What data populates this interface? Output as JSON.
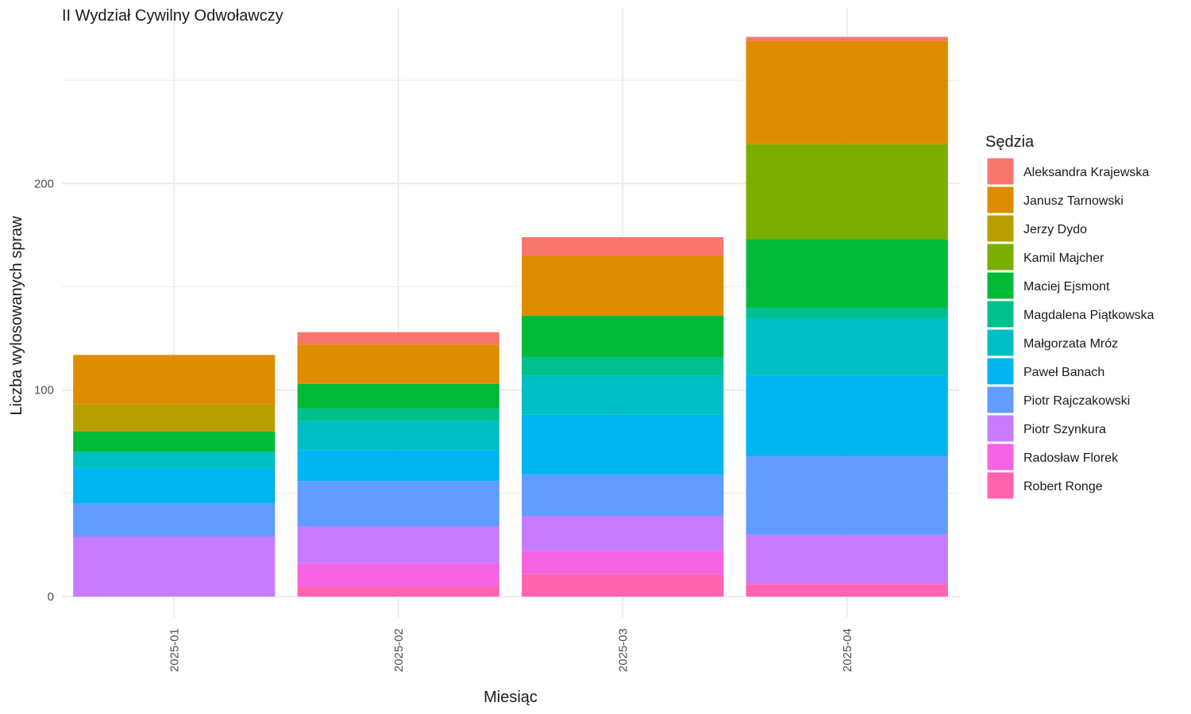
{
  "chart_data": {
    "type": "bar",
    "stacked": true,
    "title": "II Wydział Cywilny Odwoławczy",
    "xlabel": "Miesiąc",
    "ylabel": "Liczba wylosowanych spraw",
    "legend_title": "Sędzia",
    "legend_position": "right",
    "grid": true,
    "ylim": [
      -10,
      285
    ],
    "y_ticks": [
      0,
      100,
      200
    ],
    "categories": [
      "2025-01",
      "2025-02",
      "2025-03",
      "2025-04"
    ],
    "stack_order_bottom_to_top": [
      "Robert Ronge",
      "Radosław Florek",
      "Piotr Szynkura",
      "Piotr Rajczakowski",
      "Paweł Banach",
      "Małgorzata Mróz",
      "Magdalena Piątkowska",
      "Maciej Ejsmont",
      "Kamil Majcher",
      "Jerzy Dydo",
      "Janusz Tarnowski",
      "Aleksandra Krajewska"
    ],
    "series": [
      {
        "name": "Aleksandra Krajewska",
        "color": "#F8766D",
        "values": [
          0,
          6,
          9,
          2
        ]
      },
      {
        "name": "Janusz Tarnowski",
        "color": "#DE8C00",
        "values": [
          24,
          19,
          29,
          50
        ]
      },
      {
        "name": "Jerzy Dydo",
        "color": "#B79F00",
        "values": [
          13,
          0,
          0,
          0
        ]
      },
      {
        "name": "Kamil Majcher",
        "color": "#7CAE00",
        "values": [
          0,
          0,
          0,
          46
        ]
      },
      {
        "name": "Maciej Ejsmont",
        "color": "#00BA38",
        "values": [
          10,
          12,
          20,
          33
        ]
      },
      {
        "name": "Magdalena Piątkowska",
        "color": "#00C08B",
        "values": [
          0,
          6,
          9,
          5
        ]
      },
      {
        "name": "Małgorzata Mróz",
        "color": "#00BFC4",
        "values": [
          8,
          14,
          19,
          28
        ]
      },
      {
        "name": "Paweł Banach",
        "color": "#00B4F0",
        "values": [
          17,
          15,
          29,
          39
        ]
      },
      {
        "name": "Piotr Rajczakowski",
        "color": "#619CFF",
        "values": [
          16,
          22,
          20,
          38
        ]
      },
      {
        "name": "Piotr Szynkura",
        "color": "#C77CFF",
        "values": [
          29,
          18,
          17,
          24
        ]
      },
      {
        "name": "Radosław Florek",
        "color": "#F564E3",
        "values": [
          0,
          11,
          11,
          0
        ]
      },
      {
        "name": "Robert Ronge",
        "color": "#FF64B0",
        "values": [
          0,
          5,
          11,
          6
        ]
      }
    ]
  }
}
